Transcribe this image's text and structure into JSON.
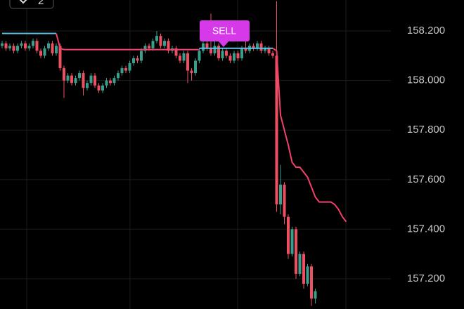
{
  "chart_data": {
    "type": "candlestick",
    "badge": "2",
    "annotations": [
      {
        "text": "SELL",
        "color": "#d63ae8"
      }
    ],
    "ylim": [
      157.078,
      158.325
    ],
    "yticks": [
      {
        "value": 157.2,
        "label": "157.200"
      },
      {
        "value": 157.4,
        "label": "157.400"
      },
      {
        "value": 157.6,
        "label": "157.600"
      },
      {
        "value": 157.8,
        "label": "157.800"
      },
      {
        "value": 158.0,
        "label": "158.000"
      },
      {
        "value": 158.2,
        "label": "158.200"
      }
    ],
    "grid": true,
    "up_color": "#3a9e8c",
    "down_color": "#ef5061",
    "open": [
      158.14,
      158.15,
      158.13,
      158.14,
      158.12,
      158.14,
      158.15,
      158.13,
      158.14,
      158.16,
      158.12,
      158.1,
      158.13,
      158.15,
      158.11,
      158.14,
      158.05,
      158.0,
      158.02,
      157.99,
      158.01,
      158.03,
      157.97,
      157.99,
      158.02,
      157.98,
      157.96,
      157.98,
      158.0,
      157.99,
      158.01,
      158.03,
      158.05,
      158.04,
      158.07,
      158.09,
      158.08,
      158.12,
      158.14,
      158.13,
      158.16,
      158.18,
      158.14,
      158.16,
      158.12,
      158.13,
      158.1,
      158.08,
      158.11,
      158.04,
      158.03,
      158.08,
      158.12,
      158.15,
      158.13,
      158.11,
      158.14,
      158.09,
      158.12,
      158.1,
      158.08,
      158.11,
      158.09,
      158.13,
      158.12,
      158.14,
      158.13,
      158.15,
      158.12,
      158.13,
      158.11,
      158.1,
      157.5,
      157.58,
      157.45,
      157.3,
      157.4,
      157.22,
      157.3,
      157.18,
      157.25,
      157.12,
      null,
      null,
      null,
      null,
      null,
      null,
      null,
      null
    ],
    "high": [
      158.16,
      158.16,
      158.15,
      158.15,
      158.15,
      158.16,
      158.16,
      158.15,
      158.17,
      158.17,
      158.13,
      158.14,
      158.16,
      158.16,
      158.15,
      158.15,
      158.06,
      158.03,
      158.03,
      158.02,
      158.04,
      158.04,
      158.0,
      158.03,
      158.03,
      157.99,
      157.99,
      158.01,
      158.01,
      158.02,
      158.04,
      158.06,
      158.06,
      158.08,
      158.1,
      158.1,
      158.13,
      158.15,
      158.15,
      158.17,
      158.2,
      158.19,
      158.17,
      158.17,
      158.14,
      158.14,
      158.11,
      158.12,
      158.12,
      158.05,
      158.09,
      158.13,
      158.16,
      158.17,
      158.27,
      158.22,
      158.15,
      158.13,
      158.13,
      158.11,
      158.12,
      158.12,
      158.14,
      158.19,
      158.15,
      158.15,
      158.16,
      158.16,
      158.14,
      158.14,
      158.12,
      158.32,
      157.66,
      157.59,
      157.46,
      157.41,
      157.41,
      157.31,
      157.31,
      157.26,
      157.26,
      157.16,
      null,
      null,
      null,
      null,
      null,
      null,
      null,
      null
    ],
    "low": [
      158.13,
      158.12,
      158.12,
      158.11,
      158.11,
      158.13,
      158.12,
      158.12,
      158.13,
      158.11,
      158.09,
      158.09,
      158.12,
      158.1,
      158.1,
      158.04,
      157.93,
      157.99,
      157.98,
      157.98,
      158.0,
      157.94,
      157.96,
      157.98,
      157.97,
      157.95,
      157.95,
      157.97,
      157.98,
      157.98,
      158.0,
      158.02,
      158.03,
      158.03,
      158.06,
      158.07,
      158.07,
      158.11,
      158.12,
      158.12,
      158.15,
      158.13,
      158.13,
      158.11,
      158.11,
      158.09,
      158.07,
      158.07,
      157.99,
      158.0,
      158.02,
      158.07,
      158.11,
      158.12,
      158.1,
      158.1,
      158.08,
      158.08,
      158.09,
      158.07,
      158.07,
      158.08,
      158.08,
      158.11,
      158.11,
      158.12,
      158.12,
      158.11,
      158.11,
      158.1,
      158.09,
      157.47,
      157.46,
      157.42,
      157.28,
      157.29,
      157.2,
      157.21,
      157.16,
      157.17,
      157.09,
      157.1,
      null,
      null,
      null,
      null,
      null,
      null,
      null,
      null
    ],
    "close": [
      158.15,
      158.13,
      158.14,
      158.12,
      158.14,
      158.15,
      158.13,
      158.14,
      158.16,
      158.12,
      158.1,
      158.13,
      158.15,
      158.11,
      158.14,
      158.05,
      158.0,
      158.02,
      157.99,
      158.01,
      158.03,
      157.97,
      157.99,
      158.02,
      157.98,
      157.96,
      157.98,
      158.0,
      157.99,
      158.01,
      158.03,
      158.05,
      158.04,
      158.07,
      158.09,
      158.08,
      158.12,
      158.14,
      158.13,
      158.16,
      158.18,
      158.14,
      158.16,
      158.12,
      158.13,
      158.1,
      158.08,
      158.11,
      158.04,
      158.03,
      158.08,
      158.12,
      158.15,
      158.13,
      158.11,
      158.14,
      158.09,
      158.12,
      158.1,
      158.08,
      158.11,
      158.09,
      158.13,
      158.12,
      158.14,
      158.13,
      158.15,
      158.12,
      158.13,
      158.11,
      158.1,
      157.5,
      157.58,
      157.45,
      157.3,
      157.4,
      157.22,
      157.3,
      157.18,
      157.25,
      157.12,
      157.15,
      null,
      null,
      null,
      null,
      null,
      null,
      null,
      null
    ],
    "series": [
      {
        "color": "#5ec4e6",
        "values": [
          158.19,
          158.19,
          158.19,
          158.19,
          158.19,
          158.19,
          158.19,
          158.19,
          158.19,
          158.19,
          158.19,
          158.19,
          158.19,
          158.19,
          158.19,
          null,
          null,
          null,
          null,
          null,
          null,
          null,
          null,
          null,
          null,
          null,
          null,
          null,
          null,
          null,
          null,
          null,
          null,
          null,
          null,
          null,
          null,
          null,
          null,
          null,
          null,
          null,
          null,
          null,
          null,
          null,
          null,
          null,
          null,
          null,
          null,
          158.13,
          158.13,
          158.13,
          158.13,
          158.13,
          158.13,
          158.13,
          158.13,
          158.13,
          158.13,
          158.13,
          158.13,
          158.13,
          158.13,
          158.13,
          158.13,
          158.13,
          158.13,
          158.13,
          158.13,
          null,
          null,
          null,
          null,
          null,
          null,
          null,
          null,
          null,
          null,
          null,
          null,
          null,
          null,
          null,
          null,
          null,
          null
        ]
      },
      {
        "color": "#f2406a",
        "values": [
          null,
          null,
          null,
          null,
          null,
          null,
          null,
          null,
          null,
          null,
          null,
          null,
          null,
          null,
          158.19,
          158.13,
          158.125,
          158.125,
          158.125,
          158.125,
          158.125,
          158.125,
          158.125,
          158.125,
          158.125,
          158.125,
          158.125,
          158.125,
          158.125,
          158.125,
          158.125,
          158.125,
          158.125,
          158.125,
          158.125,
          158.125,
          158.125,
          158.125,
          158.125,
          158.125,
          158.125,
          158.125,
          158.125,
          158.125,
          158.125,
          158.125,
          158.125,
          158.125,
          158.125,
          158.125,
          158.125,
          158.125,
          null,
          null,
          null,
          null,
          null,
          null,
          null,
          null,
          null,
          null,
          null,
          null,
          null,
          null,
          null,
          null,
          null,
          null,
          158.13,
          158.12,
          157.86,
          157.8,
          157.74,
          157.67,
          157.65,
          157.65,
          157.63,
          157.61,
          157.57,
          157.53,
          157.51,
          157.51,
          157.51,
          157.51,
          157.5,
          157.48,
          157.45,
          157.43
        ]
      }
    ]
  }
}
